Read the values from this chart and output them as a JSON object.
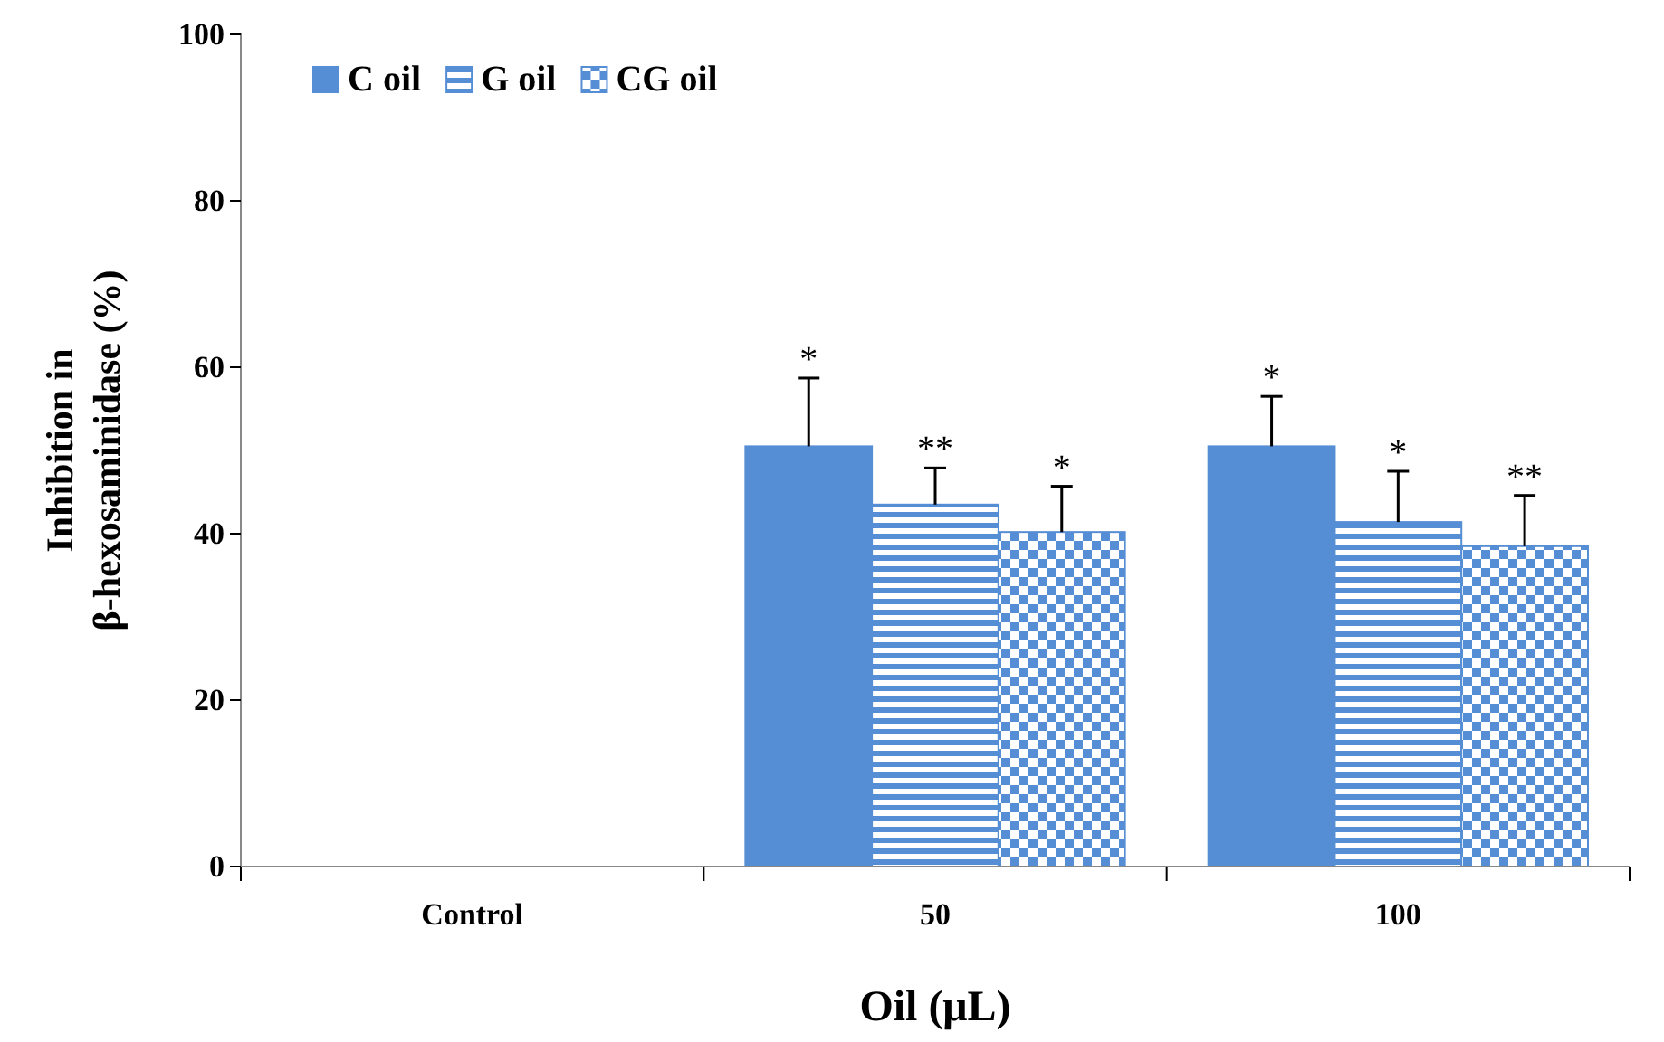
{
  "chart_data": {
    "type": "bar",
    "xlabel": "Oil (μL)",
    "ylabel": "Inhibition in\nβ-hexosaminidase (%)",
    "categories": [
      "Control",
      "50",
      "100"
    ],
    "series": [
      {
        "name": "C oil",
        "color": "#558ed5",
        "values": [
          null,
          50.5,
          50.5
        ],
        "errors": [
          null,
          [
            50.5,
            58.7
          ],
          [
            50.5,
            56.5
          ]
        ]
      },
      {
        "name": "G oil",
        "color": "#558ed5",
        "values": [
          null,
          43.5,
          41.4
        ],
        "errors": [
          null,
          [
            43.5,
            47.9
          ],
          [
            41.4,
            47.5
          ]
        ]
      },
      {
        "name": "CG oil",
        "color": "#558ed5",
        "values": [
          null,
          40.2,
          38.5
        ],
        "errors": [
          null,
          [
            40.2,
            45.7
          ],
          [
            38.5,
            44.6
          ]
        ]
      }
    ],
    "ylim": [
      0,
      100
    ],
    "yticks": [
      0,
      20,
      40,
      60,
      80,
      100
    ],
    "legend": "top left",
    "annotations": [
      "*",
      "**",
      "*",
      "*",
      "*",
      "**"
    ]
  }
}
